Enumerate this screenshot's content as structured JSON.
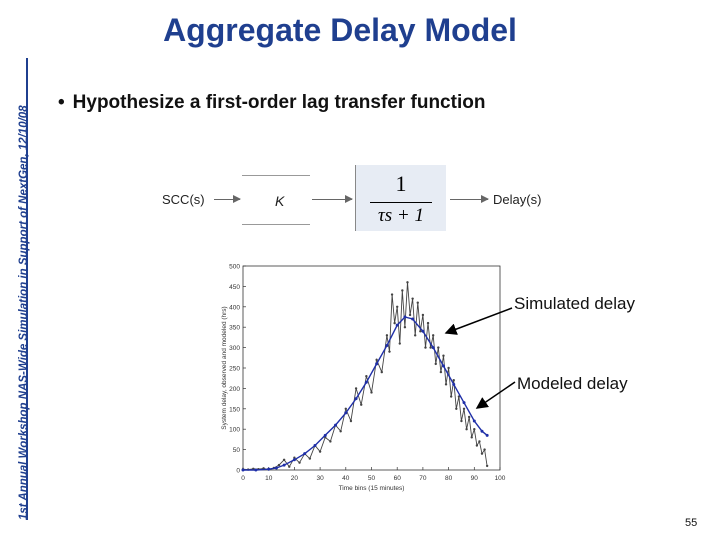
{
  "sidebar_text": "1st Annual Workshop NAS-Wide Simulation in Support of NextGen, 12/10/08",
  "title": "Aggregate Delay Model",
  "bullet": "Hypothesize a first-order lag transfer function",
  "block_diagram": {
    "input_label": "SCC(s)",
    "gain_label": "K",
    "tf_numerator": "1",
    "tf_denominator": "τs + 1",
    "output_label": "Delay(s)"
  },
  "annotations": {
    "simulated": "Simulated delay",
    "modeled": "Modeled delay"
  },
  "page_number": "55",
  "chart_data": {
    "type": "line",
    "title": "",
    "xlabel": "Time bins (15 minutes)",
    "ylabel": "System delay, observed and modeled (hrs)",
    "xlim": [
      0,
      100
    ],
    "ylim": [
      0,
      500
    ],
    "xticks": [
      0,
      10,
      20,
      30,
      40,
      50,
      60,
      70,
      80,
      90,
      100
    ],
    "yticks": [
      0,
      50,
      100,
      150,
      200,
      250,
      300,
      350,
      400,
      450,
      500
    ],
    "grid": false,
    "series": [
      {
        "name": "Simulated delay",
        "color": "#444444",
        "x": [
          0,
          2,
          4,
          6,
          8,
          10,
          12,
          14,
          16,
          18,
          20,
          22,
          24,
          26,
          28,
          30,
          32,
          34,
          36,
          38,
          40,
          42,
          44,
          46,
          48,
          50,
          52,
          54,
          56,
          57,
          58,
          59,
          60,
          61,
          62,
          63,
          64,
          65,
          66,
          67,
          68,
          69,
          70,
          71,
          72,
          73,
          74,
          75,
          76,
          77,
          78,
          79,
          80,
          81,
          82,
          83,
          84,
          85,
          86,
          87,
          88,
          89,
          90,
          91,
          92,
          93,
          94,
          95
        ],
        "y": [
          2,
          1,
          3,
          2,
          4,
          1,
          5,
          12,
          25,
          8,
          30,
          18,
          40,
          28,
          60,
          45,
          80,
          70,
          110,
          95,
          150,
          120,
          200,
          160,
          230,
          190,
          270,
          240,
          330,
          290,
          430,
          360,
          400,
          310,
          440,
          350,
          460,
          380,
          420,
          330,
          410,
          340,
          380,
          300,
          360,
          300,
          330,
          260,
          300,
          240,
          280,
          210,
          250,
          180,
          220,
          150,
          180,
          120,
          150,
          100,
          130,
          80,
          100,
          60,
          70,
          40,
          50,
          10
        ]
      },
      {
        "name": "Modeled delay",
        "color": "#1f2fa8",
        "x": [
          0,
          5,
          10,
          13,
          16,
          20,
          24,
          28,
          32,
          36,
          40,
          44,
          48,
          52,
          56,
          60,
          63,
          66,
          70,
          74,
          78,
          82,
          86,
          90,
          93,
          95
        ],
        "y": [
          0,
          0,
          2,
          5,
          12,
          25,
          40,
          60,
          85,
          110,
          140,
          175,
          215,
          260,
          305,
          355,
          375,
          370,
          340,
          300,
          255,
          210,
          165,
          120,
          95,
          85
        ]
      }
    ]
  }
}
